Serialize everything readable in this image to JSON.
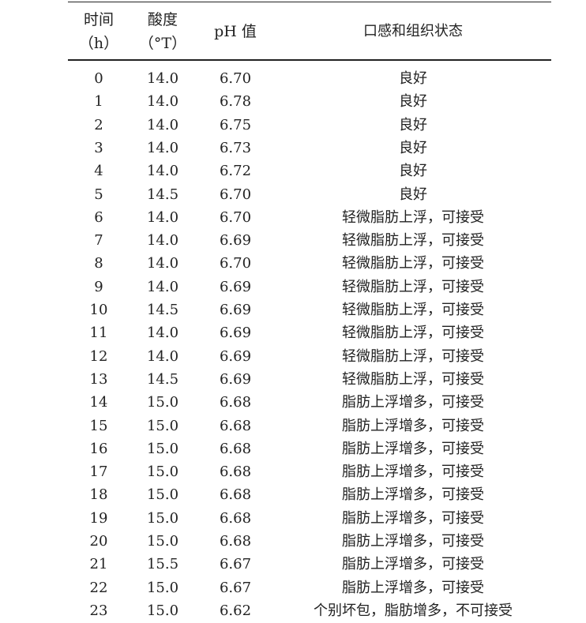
{
  "table": {
    "headers": [
      {
        "line1": "时间",
        "line2": "（h）"
      },
      {
        "line1": "酸度",
        "line2": "（°T）"
      },
      {
        "line1": "pH 值"
      },
      {
        "line1": "口感和组织状态"
      }
    ],
    "rows": [
      [
        "0",
        "14.0",
        "6.70",
        "良好"
      ],
      [
        "1",
        "14.0",
        "6.78",
        "良好"
      ],
      [
        "2",
        "14.0",
        "6.75",
        "良好"
      ],
      [
        "3",
        "14.0",
        "6.73",
        "良好"
      ],
      [
        "4",
        "14.0",
        "6.72",
        "良好"
      ],
      [
        "5",
        "14.5",
        "6.70",
        "良好"
      ],
      [
        "6",
        "14.0",
        "6.70",
        "轻微脂肪上浮，可接受"
      ],
      [
        "7",
        "14.0",
        "6.69",
        "轻微脂肪上浮，可接受"
      ],
      [
        "8",
        "14.0",
        "6.70",
        "轻微脂肪上浮，可接受"
      ],
      [
        "9",
        "14.0",
        "6.69",
        "轻微脂肪上浮，可接受"
      ],
      [
        "10",
        "14.5",
        "6.69",
        "轻微脂肪上浮，可接受"
      ],
      [
        "11",
        "14.0",
        "6.69",
        "轻微脂肪上浮，可接受"
      ],
      [
        "12",
        "14.0",
        "6.69",
        "轻微脂肪上浮，可接受"
      ],
      [
        "13",
        "14.5",
        "6.69",
        "轻微脂肪上浮，可接受"
      ],
      [
        "14",
        "15.0",
        "6.68",
        "脂肪上浮增多，可接受"
      ],
      [
        "15",
        "15.0",
        "6.68",
        "脂肪上浮增多，可接受"
      ],
      [
        "16",
        "15.0",
        "6.68",
        "脂肪上浮增多，可接受"
      ],
      [
        "17",
        "15.0",
        "6.68",
        "脂肪上浮增多，可接受"
      ],
      [
        "18",
        "15.0",
        "6.68",
        "脂肪上浮增多，可接受"
      ],
      [
        "19",
        "15.0",
        "6.68",
        "脂肪上浮增多，可接受"
      ],
      [
        "20",
        "15.0",
        "6.68",
        "脂肪上浮增多，可接受"
      ],
      [
        "21",
        "15.5",
        "6.67",
        "脂肪上浮增多，可接受"
      ],
      [
        "22",
        "15.0",
        "6.67",
        "脂肪上浮增多，可接受"
      ],
      [
        "23",
        "15.0",
        "6.62",
        "个别坏包，脂肪增多，不可接受"
      ]
    ]
  }
}
